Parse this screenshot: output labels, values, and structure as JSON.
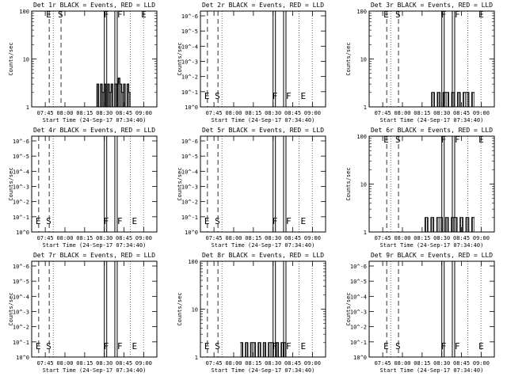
{
  "figure": {
    "background": "#ffffff",
    "ink": "#000000",
    "lld_color": "#ff0000",
    "x_tick_labels": [
      "07:45",
      "08:00",
      "08:15",
      "08:30",
      "08:45",
      "09:00"
    ],
    "x_title": "Start Time (24-Sep-17 07:34:40)",
    "y_title": "Counts/sec"
  },
  "chart_data": [
    {
      "type": "line",
      "title": "Det 1r BLACK = Events, RED = LLD",
      "ylabel": "Counts/sec",
      "xlabel": "Start Time (24-Sep-17 07:34:40)",
      "xlim": [
        "07:34:40",
        "09:10"
      ],
      "ylim": [
        1,
        100
      ],
      "yscale": "log",
      "yticks": [
        "1",
        "10",
        "100"
      ],
      "xticks": [
        "07:45",
        "08:00",
        "08:15",
        "08:30",
        "08:45",
        "09:00"
      ],
      "markers": [
        {
          "label": "E",
          "x": "07:45"
        },
        {
          "label": "S",
          "x": "07:54"
        },
        {
          "label": "F",
          "x": "08:30"
        },
        {
          "label": "F",
          "x": "08:38"
        },
        {
          "label": "E",
          "x": "08:55"
        }
      ],
      "series": [
        {
          "name": "BLACK = Events",
          "x_range": [
            "08:23",
            "08:50"
          ],
          "values": [
            1,
            3,
            1,
            3,
            2,
            3,
            1,
            3,
            2,
            3,
            1,
            3,
            3,
            4,
            3,
            2,
            3,
            1,
            3,
            2
          ],
          "note": "noisy 1-4 counts/sec"
        }
      ]
    },
    {
      "type": "line",
      "title": "Det 2r BLACK = Events, RED = LLD",
      "ylabel": "Counts/sec",
      "xlabel": "Start Time (24-Sep-17 07:34:40)",
      "xlim": [
        "07:34:40",
        "09:10"
      ],
      "ylim": [
        1,
        1e-06
      ],
      "yscale": "log",
      "yticks": [
        "10^0",
        "10^-1",
        "10^-2",
        "10^-3",
        "10^-4",
        "10^-5",
        "10^-6"
      ],
      "xticks": [
        "07:45",
        "08:00",
        "08:15",
        "08:30",
        "08:45",
        "09:00"
      ],
      "markers": [
        {
          "label": "E",
          "x": "07:37"
        },
        {
          "label": "S",
          "x": "07:45"
        },
        {
          "label": "F",
          "x": "08:30"
        },
        {
          "label": "F",
          "x": "08:38"
        },
        {
          "label": "E",
          "x": "08:48"
        }
      ],
      "series": []
    },
    {
      "type": "line",
      "title": "Det 3r BLACK = Events, RED = LLD",
      "ylabel": "Counts/sec",
      "xlabel": "Start Time (24-Sep-17 07:34:40)",
      "xlim": [
        "07:34:40",
        "09:10"
      ],
      "ylim": [
        1,
        100
      ],
      "yscale": "log",
      "yticks": [
        "1",
        "10",
        "100"
      ],
      "xticks": [
        "07:45",
        "08:00",
        "08:15",
        "08:30",
        "08:45",
        "09:00"
      ],
      "markers": [
        {
          "label": "E",
          "x": "07:45"
        },
        {
          "label": "S",
          "x": "07:54"
        },
        {
          "label": "F",
          "x": "08:30"
        },
        {
          "label": "F",
          "x": "08:38"
        },
        {
          "label": "E",
          "x": "08:55"
        }
      ],
      "series": [
        {
          "name": "BLACK = Events",
          "x_range": [
            "08:20",
            "08:55"
          ],
          "values": [
            1,
            2,
            1,
            2,
            1,
            2,
            2,
            1,
            2,
            1,
            2,
            1,
            2,
            2,
            1,
            2
          ],
          "note": "noisy 1-2 counts/sec"
        }
      ]
    },
    {
      "type": "line",
      "title": "Det 4r BLACK = Events, RED = LLD",
      "ylabel": "Counts/sec",
      "xlabel": "Start Time (24-Sep-17 07:34:40)",
      "xlim": [
        "07:34:40",
        "09:10"
      ],
      "ylim": [
        1,
        1e-06
      ],
      "yscale": "log",
      "yticks": [
        "10^0",
        "10^-1",
        "10^-2",
        "10^-3",
        "10^-4",
        "10^-5",
        "10^-6"
      ],
      "xticks": [
        "07:45",
        "08:00",
        "08:15",
        "08:30",
        "08:45",
        "09:00"
      ],
      "markers": [
        {
          "label": "E",
          "x": "07:37"
        },
        {
          "label": "S",
          "x": "07:45"
        },
        {
          "label": "F",
          "x": "08:30"
        },
        {
          "label": "F",
          "x": "08:38"
        },
        {
          "label": "E",
          "x": "08:48"
        }
      ],
      "series": []
    },
    {
      "type": "line",
      "title": "Det 5r BLACK = Events, RED = LLD",
      "ylabel": "Counts/sec",
      "xlabel": "Start Time (24-Sep-17 07:34:40)",
      "xlim": [
        "07:34:40",
        "09:10"
      ],
      "ylim": [
        1,
        1e-06
      ],
      "yscale": "log",
      "yticks": [
        "10^0",
        "10^-1",
        "10^-2",
        "10^-3",
        "10^-4",
        "10^-5",
        "10^-6"
      ],
      "xticks": [
        "07:45",
        "08:00",
        "08:15",
        "08:30",
        "08:45",
        "09:00"
      ],
      "markers": [
        {
          "label": "E",
          "x": "07:37"
        },
        {
          "label": "S",
          "x": "07:45"
        },
        {
          "label": "F",
          "x": "08:30"
        },
        {
          "label": "F",
          "x": "08:38"
        },
        {
          "label": "E",
          "x": "08:48"
        }
      ],
      "series": []
    },
    {
      "type": "line",
      "title": "Det 6r BLACK = Events, RED = LLD",
      "ylabel": "Counts/sec",
      "xlabel": "Start Time (24-Sep-17 07:34:40)",
      "xlim": [
        "07:34:40",
        "09:10"
      ],
      "ylim": [
        1,
        100
      ],
      "yscale": "log",
      "yticks": [
        "1",
        "10",
        "100"
      ],
      "xticks": [
        "07:45",
        "08:00",
        "08:15",
        "08:30",
        "08:45",
        "09:00"
      ],
      "markers": [
        {
          "label": "E",
          "x": "07:45"
        },
        {
          "label": "S",
          "x": "07:54"
        },
        {
          "label": "F",
          "x": "08:30"
        },
        {
          "label": "F",
          "x": "08:38"
        },
        {
          "label": "E",
          "x": "08:55"
        }
      ],
      "series": [
        {
          "name": "BLACK = Events",
          "x_range": [
            "08:15",
            "08:55"
          ],
          "values": [
            1,
            2,
            1,
            2,
            1,
            2,
            2,
            1,
            2,
            1,
            2,
            2,
            1,
            2,
            1,
            2,
            1,
            2
          ],
          "note": "noisy 1-2 counts/sec"
        }
      ]
    },
    {
      "type": "line",
      "title": "Det 7r BLACK = Events, RED = LLD",
      "ylabel": "Counts/sec",
      "xlabel": "Start Time (24-Sep-17 07:34:40)",
      "xlim": [
        "07:34:40",
        "09:10"
      ],
      "ylim": [
        1,
        1e-06
      ],
      "yscale": "log",
      "yticks": [
        "10^0",
        "10^-1",
        "10^-2",
        "10^-3",
        "10^-4",
        "10^-5",
        "10^-6"
      ],
      "xticks": [
        "07:45",
        "08:00",
        "08:15",
        "08:30",
        "08:45",
        "09:00"
      ],
      "markers": [
        {
          "label": "E",
          "x": "07:37"
        },
        {
          "label": "S",
          "x": "07:45"
        },
        {
          "label": "F",
          "x": "08:30"
        },
        {
          "label": "F",
          "x": "08:38"
        },
        {
          "label": "E",
          "x": "08:48"
        }
      ],
      "series": []
    },
    {
      "type": "line",
      "title": "Det 8r BLACK = Events, RED = LLD",
      "ylabel": "Counts/sec",
      "xlabel": "Start Time (24-Sep-17 07:34:40)",
      "xlim": [
        "07:34:40",
        "09:10"
      ],
      "ylim": [
        1,
        100
      ],
      "yscale": "log",
      "yticks": [
        "1",
        "10",
        "100"
      ],
      "xticks": [
        "07:45",
        "08:00",
        "08:15",
        "08:30",
        "08:45",
        "09:00"
      ],
      "markers": [
        {
          "label": "E",
          "x": "07:37"
        },
        {
          "label": "S",
          "x": "07:45"
        },
        {
          "label": "F",
          "x": "08:30"
        },
        {
          "label": "F",
          "x": "08:38"
        },
        {
          "label": "E",
          "x": "08:48"
        }
      ],
      "series": [
        {
          "name": "BLACK = Events",
          "x_range": [
            "08:05",
            "08:40"
          ],
          "values": [
            2,
            1,
            2,
            1,
            2,
            2,
            1,
            2,
            1,
            2,
            1,
            2,
            2,
            1,
            2,
            1,
            2,
            2
          ],
          "note": "noisy 1-2 counts/sec"
        }
      ]
    },
    {
      "type": "line",
      "title": "Det 9r BLACK = Events, RED = LLD",
      "ylabel": "Counts/sec",
      "xlabel": "Start Time (24-Sep-17 07:34:40)",
      "xlim": [
        "07:34:40",
        "09:10"
      ],
      "ylim": [
        1,
        1e-06
      ],
      "yscale": "log",
      "yticks": [
        "10^0",
        "10^-1",
        "10^-2",
        "10^-3",
        "10^-4",
        "10^-5",
        "10^-6"
      ],
      "xticks": [
        "07:45",
        "08:00",
        "08:15",
        "08:30",
        "08:45",
        "09:00"
      ],
      "markers": [
        {
          "label": "E",
          "x": "07:45"
        },
        {
          "label": "S",
          "x": "07:54"
        },
        {
          "label": "F",
          "x": "08:30"
        },
        {
          "label": "F",
          "x": "08:38"
        },
        {
          "label": "E",
          "x": "08:55"
        }
      ],
      "series": []
    }
  ]
}
